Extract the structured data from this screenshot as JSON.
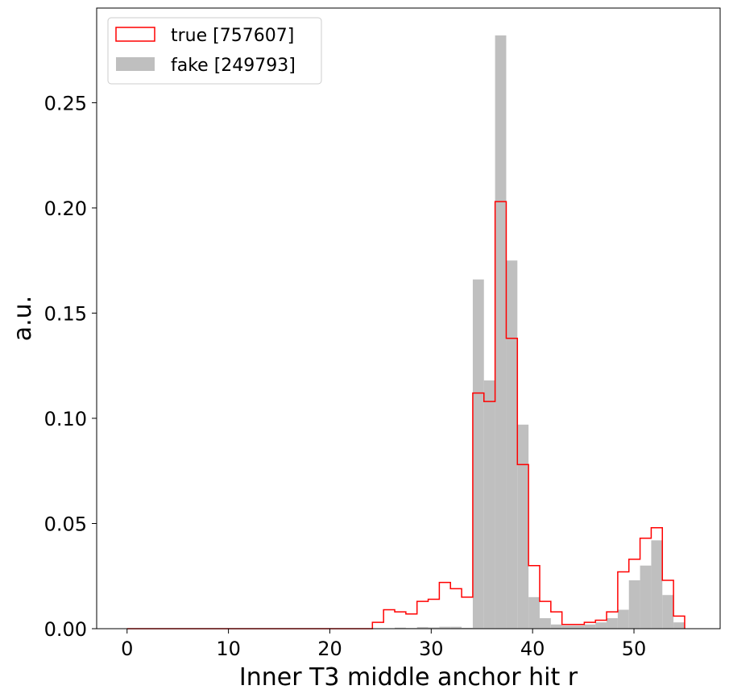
{
  "chart_data": {
    "type": "histogram",
    "xlabel": "Inner T3 middle anchor hit r",
    "ylabel": "a.u.",
    "xlim": [
      -3,
      58.5
    ],
    "ylim": [
      0,
      0.295
    ],
    "bin_start": 0,
    "bin_width": 1.1,
    "x_ticks": [
      0,
      10,
      20,
      30,
      40,
      50
    ],
    "y_ticks": [
      0.0,
      0.05,
      0.1,
      0.15,
      0.2,
      0.25
    ],
    "y_tick_labels": [
      "0.00",
      "0.05",
      "0.10",
      "0.15",
      "0.20",
      "0.25"
    ],
    "legend_position": "upper-left",
    "series": [
      {
        "name": "true [757607]",
        "style": "step",
        "color": "#ff0000",
        "values": [
          0,
          0,
          0,
          0,
          0,
          0,
          0,
          0,
          0,
          0,
          0,
          0,
          0,
          0,
          0,
          0,
          0,
          0,
          0,
          0,
          0,
          0,
          0.003,
          0.009,
          0.008,
          0.007,
          0.013,
          0.014,
          0.022,
          0.019,
          0.015,
          0.112,
          0.108,
          0.203,
          0.138,
          0.078,
          0.03,
          0.013,
          0.008,
          0.002,
          0.002,
          0.003,
          0.004,
          0.008,
          0.027,
          0.033,
          0.043,
          0.048,
          0.023,
          0.006
        ]
      },
      {
        "name": "fake [249793]",
        "style": "filled",
        "color": "#bfbfbf",
        "values": [
          0,
          0,
          0,
          0,
          0,
          0,
          0,
          0,
          0,
          0,
          0,
          0,
          0,
          0,
          0,
          0,
          0,
          0,
          0,
          0,
          0,
          0,
          0,
          0,
          0.0005,
          0.0003,
          0.0008,
          0.0006,
          0.0009,
          0.0009,
          0.0004,
          0.166,
          0.118,
          0.282,
          0.175,
          0.097,
          0.015,
          0.005,
          0.002,
          0.0015,
          0.0015,
          0.002,
          0.003,
          0.005,
          0.009,
          0.023,
          0.03,
          0.042,
          0.016,
          0.003
        ]
      }
    ]
  }
}
